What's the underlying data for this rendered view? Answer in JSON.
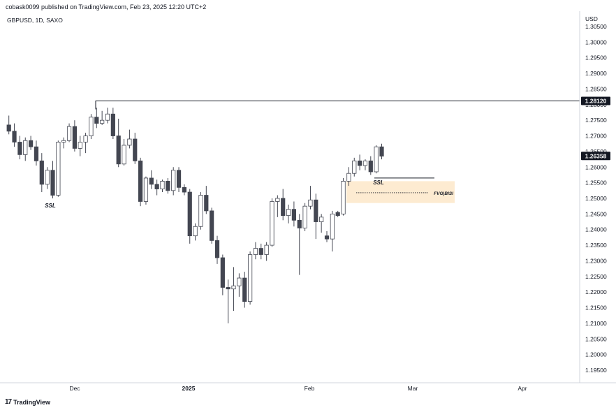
{
  "header": {
    "publish_text": "cobask0099 published on TradingView.com, Feb 23, 2025 12:20 UTC+2",
    "symbol_text": "GBPUSD, 1D, SAXO"
  },
  "footer": {
    "logo_text": "TradingView",
    "logo_icon": "tradingview-logo-icon"
  },
  "colors": {
    "bear": "#434651",
    "bull": "#ffffff",
    "wick": "#434651",
    "axis_text": "#131722",
    "zone_fill": "#fde7c9",
    "tag_bg": "#131722",
    "tag_text": "#ffffff"
  },
  "chart_data": {
    "type": "candlestick",
    "currency_label": "USD",
    "y_ticks": [
      "1.30500",
      "1.30000",
      "1.29500",
      "1.29000",
      "1.28500",
      "1.28000",
      "1.27500",
      "1.27000",
      "1.26500",
      "1.26000",
      "1.25500",
      "1.25000",
      "1.24500",
      "1.24000",
      "1.23500",
      "1.23000",
      "1.22500",
      "1.22000",
      "1.21500",
      "1.21000",
      "1.20500",
      "1.20000",
      "1.19500"
    ],
    "ylim": [
      1.193,
      1.307
    ],
    "x_labels": [
      "Dec",
      "2025",
      "Feb",
      "Mar",
      "Apr"
    ],
    "candles": [
      {
        "o": 1.2735,
        "h": 1.2765,
        "l": 1.2705,
        "c": 1.2715
      },
      {
        "o": 1.2715,
        "h": 1.274,
        "l": 1.2665,
        "c": 1.268
      },
      {
        "o": 1.268,
        "h": 1.27,
        "l": 1.2625,
        "c": 1.264
      },
      {
        "o": 1.264,
        "h": 1.2695,
        "l": 1.262,
        "c": 1.2685
      },
      {
        "o": 1.2685,
        "h": 1.27,
        "l": 1.2655,
        "c": 1.2665
      },
      {
        "o": 1.2665,
        "h": 1.2685,
        "l": 1.2605,
        "c": 1.262
      },
      {
        "o": 1.262,
        "h": 1.2645,
        "l": 1.252,
        "c": 1.2545
      },
      {
        "o": 1.2545,
        "h": 1.26,
        "l": 1.253,
        "c": 1.259
      },
      {
        "o": 1.259,
        "h": 1.262,
        "l": 1.25,
        "c": 1.251
      },
      {
        "o": 1.251,
        "h": 1.2685,
        "l": 1.2505,
        "c": 1.268
      },
      {
        "o": 1.268,
        "h": 1.2695,
        "l": 1.266,
        "c": 1.2685
      },
      {
        "o": 1.2685,
        "h": 1.274,
        "l": 1.268,
        "c": 1.273
      },
      {
        "o": 1.273,
        "h": 1.275,
        "l": 1.265,
        "c": 1.266
      },
      {
        "o": 1.266,
        "h": 1.27,
        "l": 1.2635,
        "c": 1.268
      },
      {
        "o": 1.268,
        "h": 1.271,
        "l": 1.2645,
        "c": 1.27
      },
      {
        "o": 1.27,
        "h": 1.277,
        "l": 1.269,
        "c": 1.276
      },
      {
        "o": 1.276,
        "h": 1.279,
        "l": 1.2725,
        "c": 1.274
      },
      {
        "o": 1.274,
        "h": 1.278,
        "l": 1.2735,
        "c": 1.275
      },
      {
        "o": 1.275,
        "h": 1.279,
        "l": 1.274,
        "c": 1.277
      },
      {
        "o": 1.277,
        "h": 1.279,
        "l": 1.269,
        "c": 1.27
      },
      {
        "o": 1.27,
        "h": 1.2755,
        "l": 1.26,
        "c": 1.261
      },
      {
        "o": 1.261,
        "h": 1.269,
        "l": 1.2605,
        "c": 1.267
      },
      {
        "o": 1.267,
        "h": 1.272,
        "l": 1.266,
        "c": 1.269
      },
      {
        "o": 1.269,
        "h": 1.271,
        "l": 1.261,
        "c": 1.262
      },
      {
        "o": 1.262,
        "h": 1.263,
        "l": 1.2475,
        "c": 1.249
      },
      {
        "o": 1.249,
        "h": 1.257,
        "l": 1.248,
        "c": 1.2565
      },
      {
        "o": 1.2565,
        "h": 1.259,
        "l": 1.253,
        "c": 1.2545
      },
      {
        "o": 1.2545,
        "h": 1.256,
        "l": 1.251,
        "c": 1.253
      },
      {
        "o": 1.253,
        "h": 1.256,
        "l": 1.252,
        "c": 1.2555
      },
      {
        "o": 1.2555,
        "h": 1.2565,
        "l": 1.2515,
        "c": 1.2525
      },
      {
        "o": 1.2525,
        "h": 1.26,
        "l": 1.251,
        "c": 1.259
      },
      {
        "o": 1.259,
        "h": 1.26,
        "l": 1.252,
        "c": 1.2535
      },
      {
        "o": 1.2535,
        "h": 1.2545,
        "l": 1.251,
        "c": 1.252
      },
      {
        "o": 1.252,
        "h": 1.253,
        "l": 1.2355,
        "c": 1.238
      },
      {
        "o": 1.238,
        "h": 1.242,
        "l": 1.2365,
        "c": 1.241
      },
      {
        "o": 1.241,
        "h": 1.252,
        "l": 1.24,
        "c": 1.251
      },
      {
        "o": 1.251,
        "h": 1.254,
        "l": 1.245,
        "c": 1.246
      },
      {
        "o": 1.246,
        "h": 1.247,
        "l": 1.2355,
        "c": 1.2365
      },
      {
        "o": 1.2365,
        "h": 1.238,
        "l": 1.229,
        "c": 1.231
      },
      {
        "o": 1.231,
        "h": 1.232,
        "l": 1.219,
        "c": 1.2215
      },
      {
        "o": 1.2215,
        "h": 1.224,
        "l": 1.21,
        "c": 1.221
      },
      {
        "o": 1.221,
        "h": 1.228,
        "l": 1.214,
        "c": 1.222
      },
      {
        "o": 1.222,
        "h": 1.226,
        "l": 1.2185,
        "c": 1.2245
      },
      {
        "o": 1.2245,
        "h": 1.2265,
        "l": 1.215,
        "c": 1.217
      },
      {
        "o": 1.217,
        "h": 1.233,
        "l": 1.216,
        "c": 1.232
      },
      {
        "o": 1.232,
        "h": 1.236,
        "l": 1.2305,
        "c": 1.234
      },
      {
        "o": 1.234,
        "h": 1.2355,
        "l": 1.2305,
        "c": 1.232
      },
      {
        "o": 1.232,
        "h": 1.236,
        "l": 1.23,
        "c": 1.235
      },
      {
        "o": 1.235,
        "h": 1.25,
        "l": 1.2345,
        "c": 1.249
      },
      {
        "o": 1.249,
        "h": 1.251,
        "l": 1.244,
        "c": 1.25
      },
      {
        "o": 1.25,
        "h": 1.253,
        "l": 1.243,
        "c": 1.2445
      },
      {
        "o": 1.2445,
        "h": 1.248,
        "l": 1.242,
        "c": 1.2465
      },
      {
        "o": 1.2465,
        "h": 1.249,
        "l": 1.241,
        "c": 1.243
      },
      {
        "o": 1.243,
        "h": 1.245,
        "l": 1.2255,
        "c": 1.2405
      },
      {
        "o": 1.2405,
        "h": 1.2485,
        "l": 1.2395,
        "c": 1.2475
      },
      {
        "o": 1.2475,
        "h": 1.254,
        "l": 1.2465,
        "c": 1.2495
      },
      {
        "o": 1.2495,
        "h": 1.2515,
        "l": 1.237,
        "c": 1.2425
      },
      {
        "o": 1.2425,
        "h": 1.245,
        "l": 1.239,
        "c": 1.244
      },
      {
        "o": 1.238,
        "h": 1.2395,
        "l": 1.236,
        "c": 1.237
      },
      {
        "o": 1.237,
        "h": 1.246,
        "l": 1.233,
        "c": 1.245
      },
      {
        "o": 1.2455,
        "h": 1.246,
        "l": 1.244,
        "c": 1.2445
      },
      {
        "o": 1.245,
        "h": 1.2565,
        "l": 1.2445,
        "c": 1.2555
      },
      {
        "o": 1.2555,
        "h": 1.26,
        "l": 1.254,
        "c": 1.258
      },
      {
        "o": 1.258,
        "h": 1.263,
        "l": 1.257,
        "c": 1.262
      },
      {
        "o": 1.262,
        "h": 1.264,
        "l": 1.259,
        "c": 1.2605
      },
      {
        "o": 1.2605,
        "h": 1.2625,
        "l": 1.259,
        "c": 1.262
      },
      {
        "o": 1.262,
        "h": 1.2635,
        "l": 1.2575,
        "c": 1.2585
      },
      {
        "o": 1.2585,
        "h": 1.267,
        "l": 1.258,
        "c": 1.2665
      },
      {
        "o": 1.2665,
        "h": 1.2675,
        "l": 1.2625,
        "c": 1.2635
      }
    ],
    "price_tags": [
      {
        "label": "1.28120",
        "value": 1.2812
      },
      {
        "label": "1.26358",
        "value": 1.26358
      }
    ],
    "annotations": [
      {
        "text": "SSL",
        "anchor": "under-first-low"
      },
      {
        "text": "SSL",
        "anchor": "under-right-level"
      },
      {
        "text": "FVG|BISI",
        "anchor": "zone-label"
      }
    ],
    "levels": {
      "high_line": 1.2812,
      "right_ssl_line": 1.2565,
      "fvg_top": 1.2555,
      "fvg_bottom": 1.2485,
      "fvg_mid": 1.2518
    }
  }
}
